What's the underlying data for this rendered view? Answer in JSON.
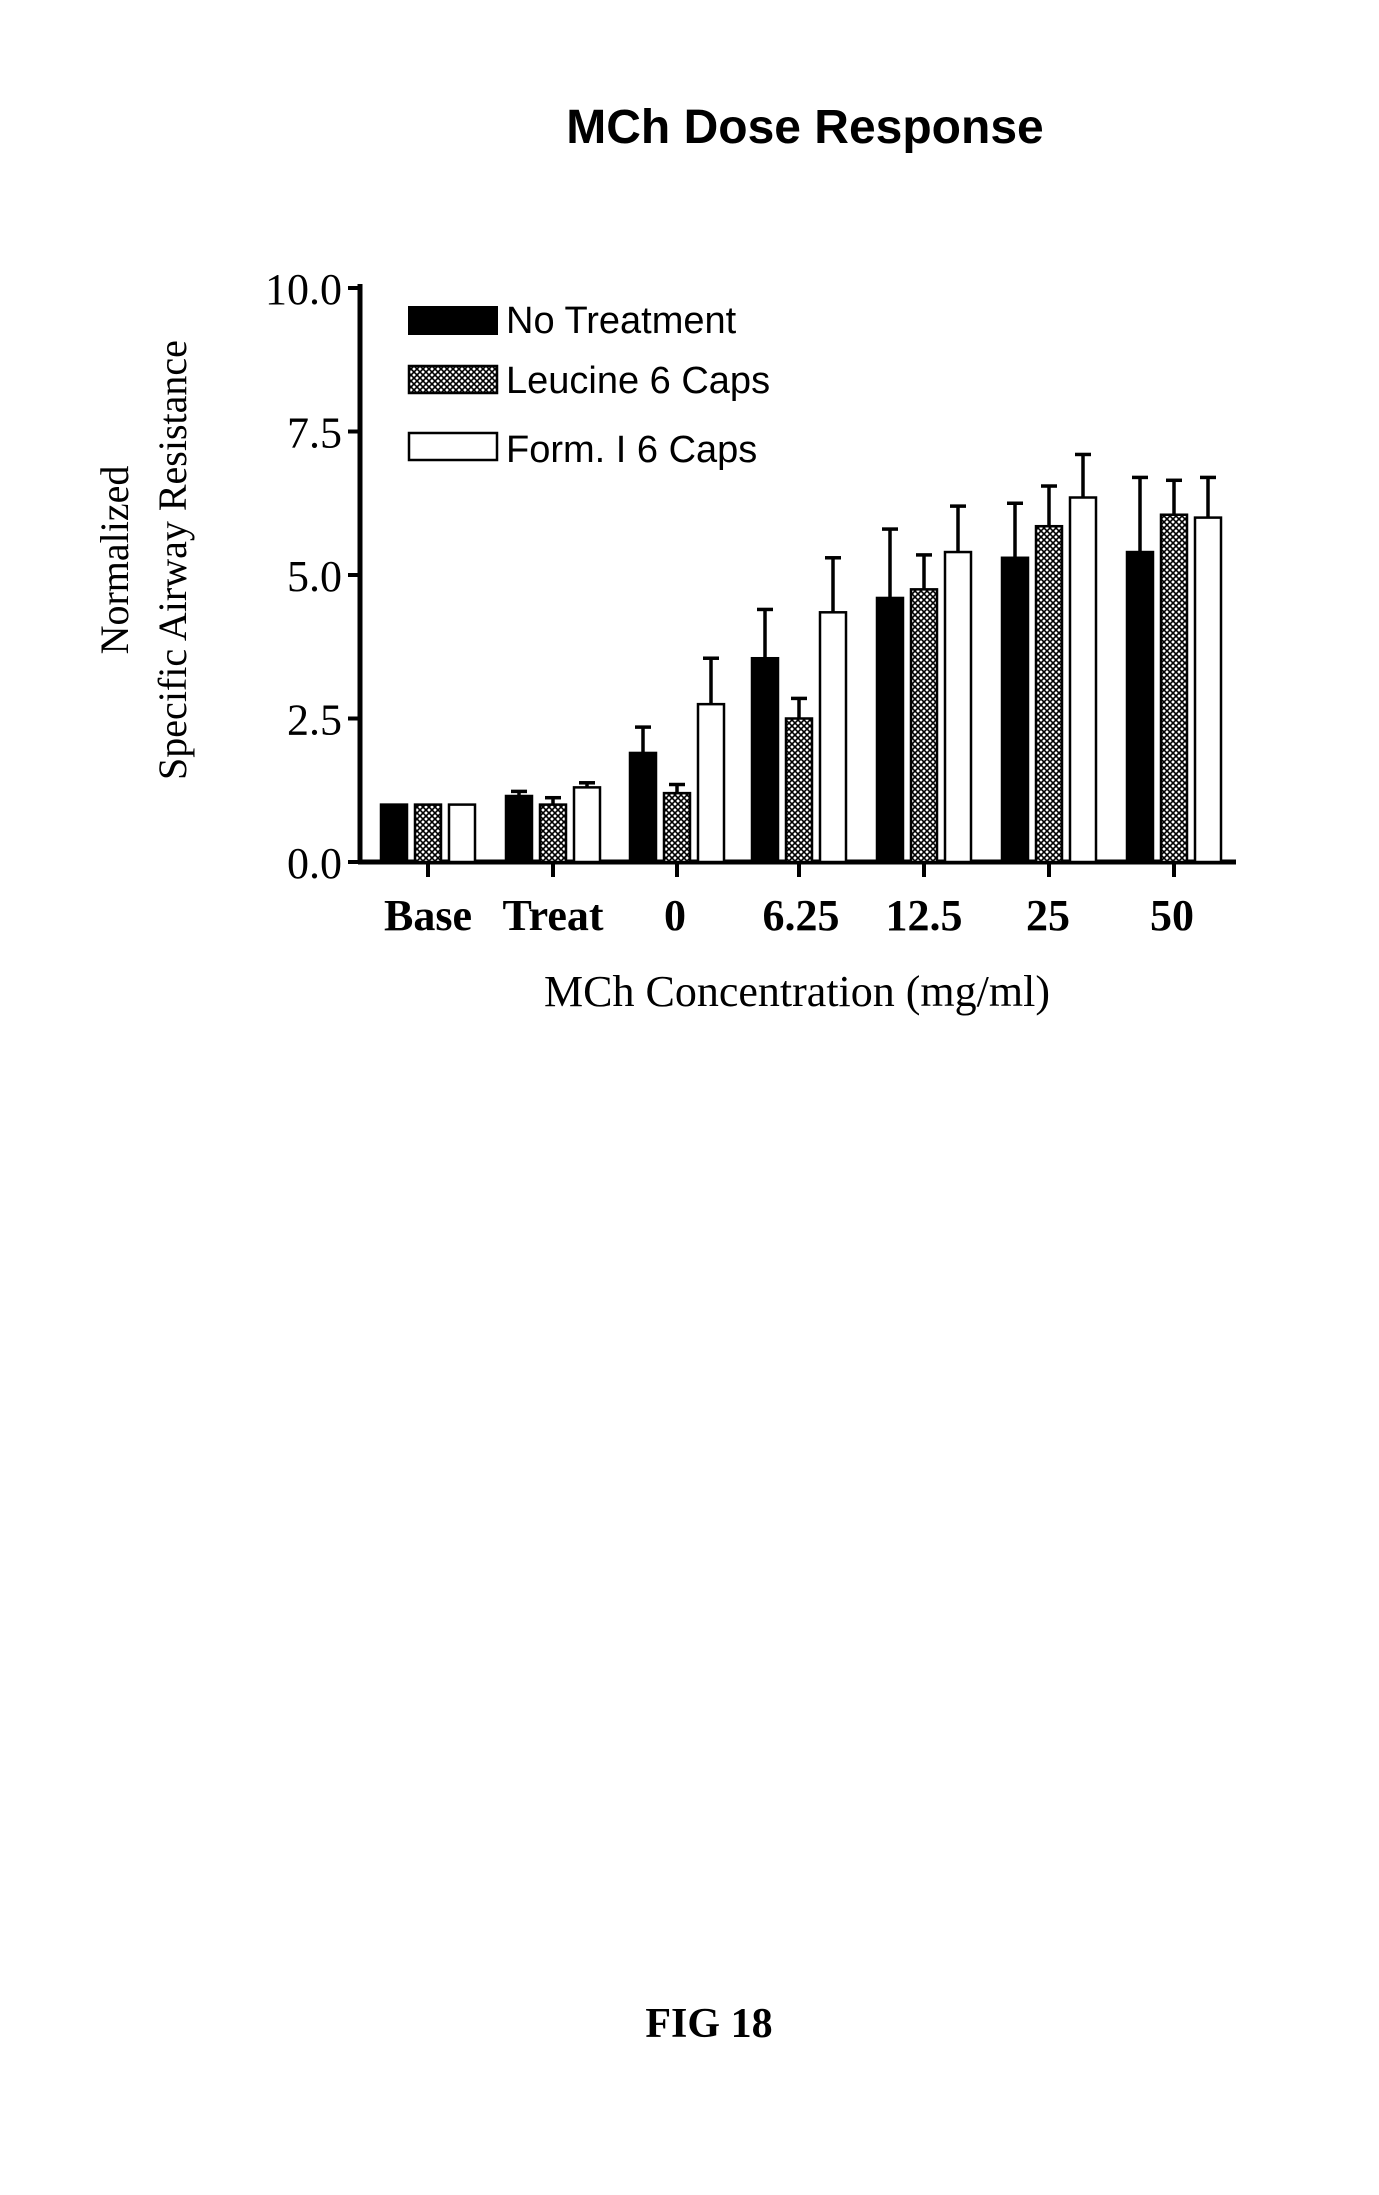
{
  "chart_data": {
    "type": "bar",
    "title": "MCh Dose Response",
    "xlabel": "MCh Concentration (mg/ml)",
    "ylabel_lines": [
      "Normalized",
      "Specific Airway Resistance"
    ],
    "ylim": [
      0,
      10
    ],
    "yticks": [
      "0.0",
      "2.5",
      "5.0",
      "7.5",
      "10.0"
    ],
    "ytick_values": [
      0,
      2.5,
      5,
      7.5,
      10
    ],
    "categories": [
      "Base",
      "Treat",
      "0",
      "6.25",
      "12.5",
      "25",
      "50"
    ],
    "grid": false,
    "legend_position": "top-left",
    "series": [
      {
        "name": "No Treatment",
        "fill": "solid-black",
        "values": [
          1.0,
          1.15,
          1.9,
          3.55,
          4.6,
          5.3,
          5.4
        ],
        "errors": [
          0.0,
          0.08,
          0.45,
          0.85,
          1.2,
          0.95,
          1.3
        ]
      },
      {
        "name": "Leucine 6 Caps",
        "fill": "crosshatch",
        "values": [
          1.0,
          1.0,
          1.2,
          2.5,
          4.75,
          5.85,
          6.05
        ],
        "errors": [
          0.0,
          0.12,
          0.15,
          0.35,
          0.6,
          0.7,
          0.6
        ]
      },
      {
        "name": "Form. I 6 Caps",
        "fill": "white",
        "values": [
          1.0,
          1.3,
          2.75,
          4.35,
          5.4,
          6.35,
          6.0
        ],
        "errors": [
          0.0,
          0.08,
          0.8,
          0.95,
          0.8,
          0.75,
          0.7
        ]
      }
    ],
    "colors": {
      "ink": "#000000",
      "background": "#ffffff"
    }
  },
  "figure_label": "FIG 18"
}
